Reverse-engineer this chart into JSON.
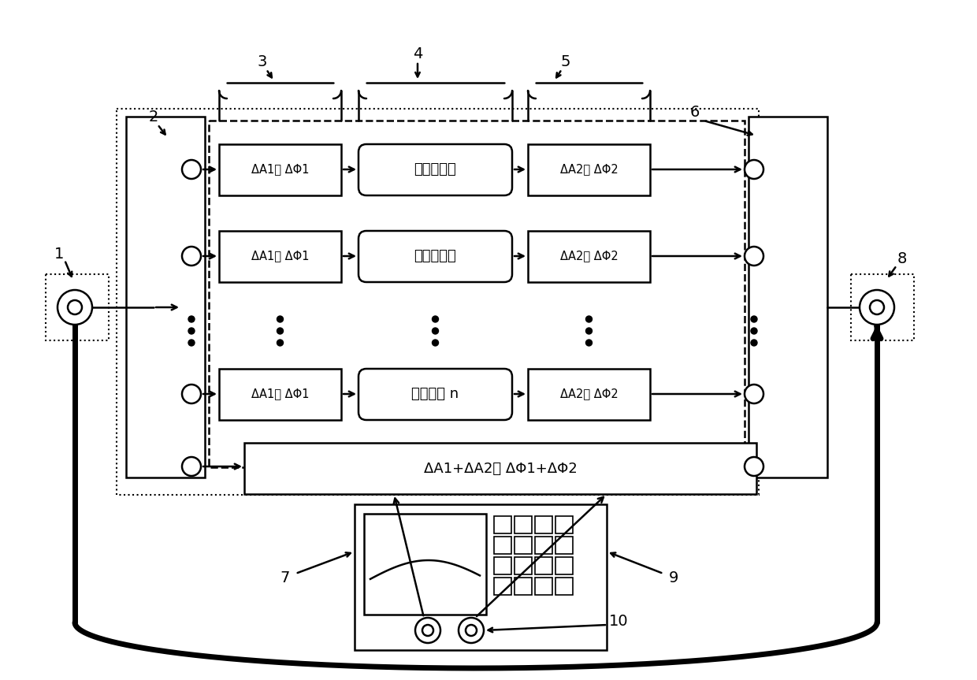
{
  "bg_color": "#ffffff",
  "fig_width": 12.4,
  "fig_height": 8.63,
  "row_labels_left": [
    "ΔA1， ΔΦ1",
    "ΔA1， ΔΦ1",
    "ΔA1， ΔΦ1"
  ],
  "row_labels_mid": [
    "实验模块一",
    "实验模块二",
    "实验模块 n"
  ],
  "row_labels_right": [
    "ΔA2， ΔΦ2",
    "ΔA2， ΔΦ2",
    "ΔA2， ΔΦ2"
  ],
  "bottom_label": "ΔA1+ΔA2， ΔΦ1+ΔΦ2"
}
